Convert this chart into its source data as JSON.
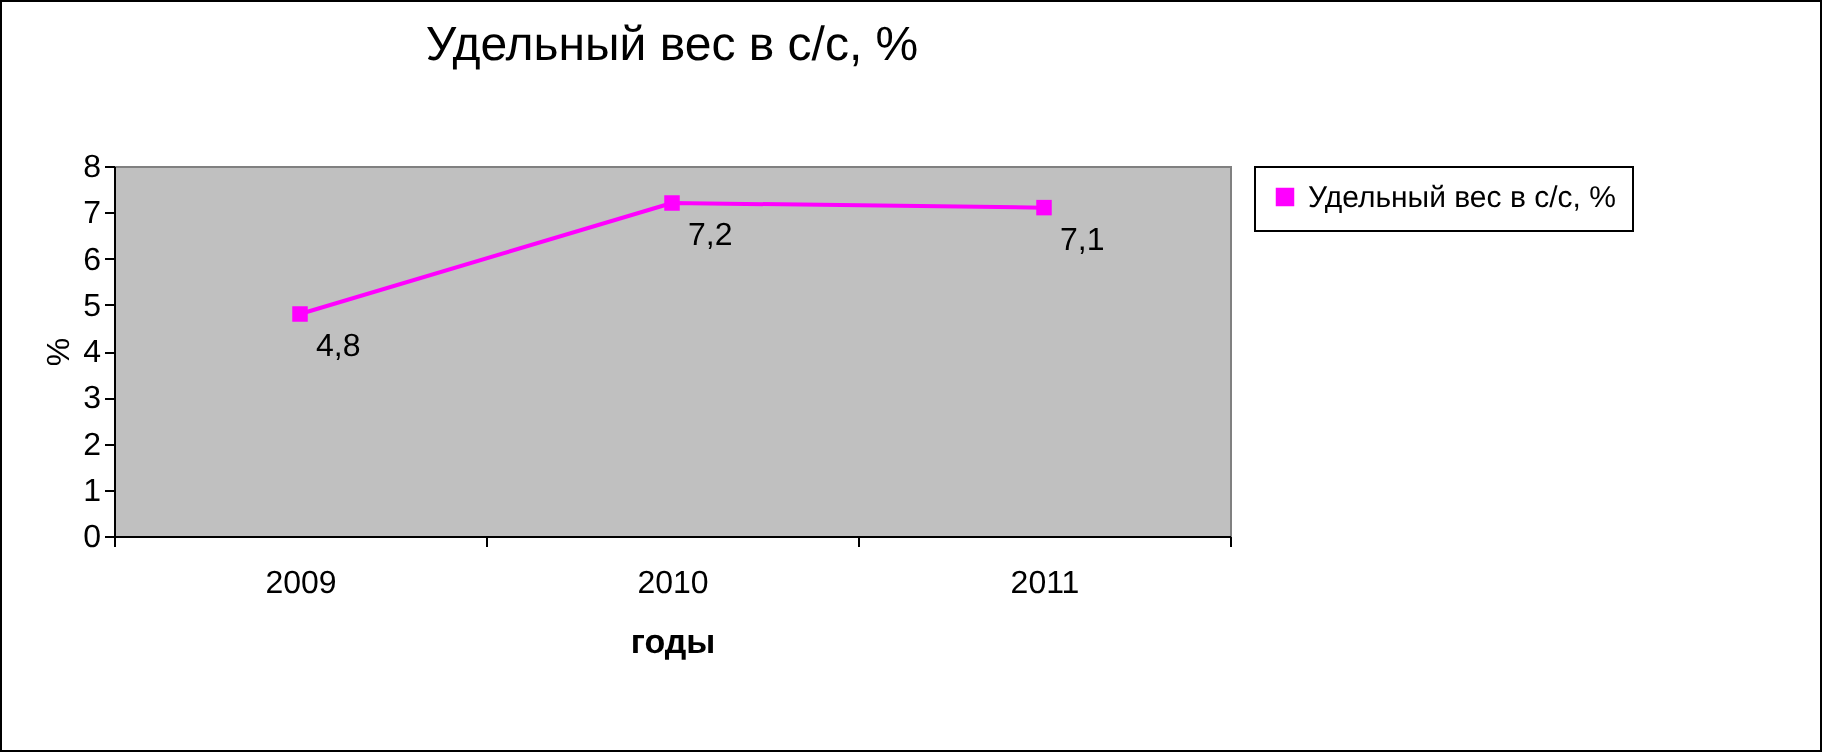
{
  "chart_data": {
    "type": "line",
    "title": "Удельный вес в с/с, %",
    "xlabel": "годы",
    "ylabel": "%",
    "categories": [
      "2009",
      "2010",
      "2011"
    ],
    "series": [
      {
        "name": "Удельный вес в с/с, %",
        "color": "#ff00ff",
        "values": [
          4.8,
          7.2,
          7.1
        ],
        "value_labels": [
          "4,8",
          "7,2",
          "7,1"
        ]
      }
    ],
    "ylim": [
      0,
      8
    ],
    "yticks": [
      0,
      1,
      2,
      3,
      4,
      5,
      6,
      7,
      8
    ],
    "grid": false,
    "legend": "right",
    "marker": "square",
    "line_style": "solid"
  }
}
